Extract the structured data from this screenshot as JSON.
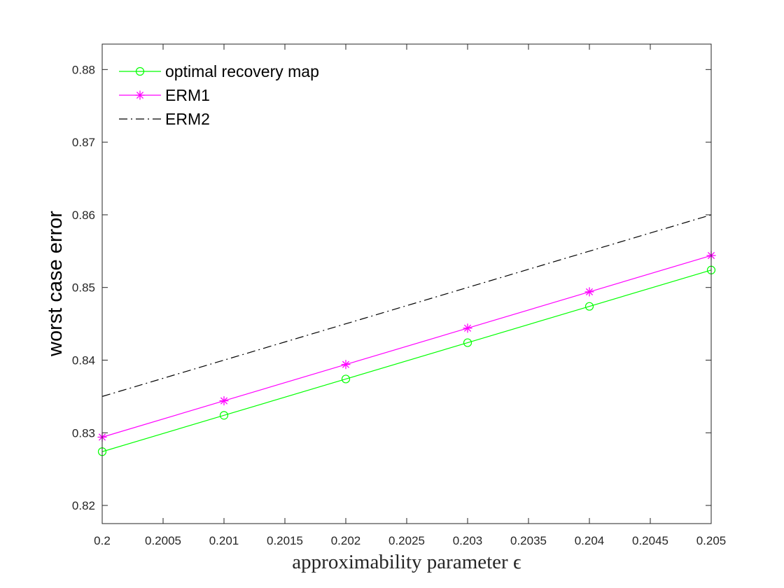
{
  "chart_data": {
    "type": "line",
    "xlabel": "approximability parameter ϵ",
    "ylabel": "worst case error",
    "xlim": [
      0.2,
      0.205
    ],
    "ylim": [
      0.8175,
      0.8835
    ],
    "x_ticks": [
      0.2,
      0.2005,
      0.201,
      0.2015,
      0.202,
      0.2025,
      0.203,
      0.2035,
      0.204,
      0.2045,
      0.205
    ],
    "x_tick_labels": [
      "0.2",
      "0.2005",
      "0.201",
      "0.2015",
      "0.202",
      "0.2025",
      "0.203",
      "0.2035",
      "0.204",
      "0.2045",
      "0.205"
    ],
    "y_ticks": [
      0.82,
      0.83,
      0.84,
      0.85,
      0.86,
      0.87,
      0.88
    ],
    "y_tick_labels": [
      "0.82",
      "0.83",
      "0.84",
      "0.85",
      "0.86",
      "0.87",
      "0.88"
    ],
    "grid": false,
    "legend_position": "top-left",
    "series": [
      {
        "name": "optimal recovery map",
        "color": "#00ff00",
        "marker": "circle",
        "line_style": "solid",
        "x": [
          0.2,
          0.201,
          0.202,
          0.203,
          0.204,
          0.205
        ],
        "y": [
          0.8274,
          0.8324,
          0.8374,
          0.8424,
          0.8474,
          0.8524
        ]
      },
      {
        "name": "ERM1",
        "color": "#ff00ff",
        "marker": "asterisk",
        "line_style": "solid",
        "x": [
          0.2,
          0.201,
          0.202,
          0.203,
          0.204,
          0.205
        ],
        "y": [
          0.8294,
          0.8344,
          0.8394,
          0.8444,
          0.8494,
          0.8544
        ]
      },
      {
        "name": "ERM2",
        "color": "#000000",
        "marker": "none",
        "line_style": "dash-dot",
        "x": [
          0.2,
          0.201,
          0.202,
          0.203,
          0.204,
          0.205
        ],
        "y": [
          0.835,
          0.84,
          0.845,
          0.85,
          0.855,
          0.86
        ]
      }
    ]
  }
}
